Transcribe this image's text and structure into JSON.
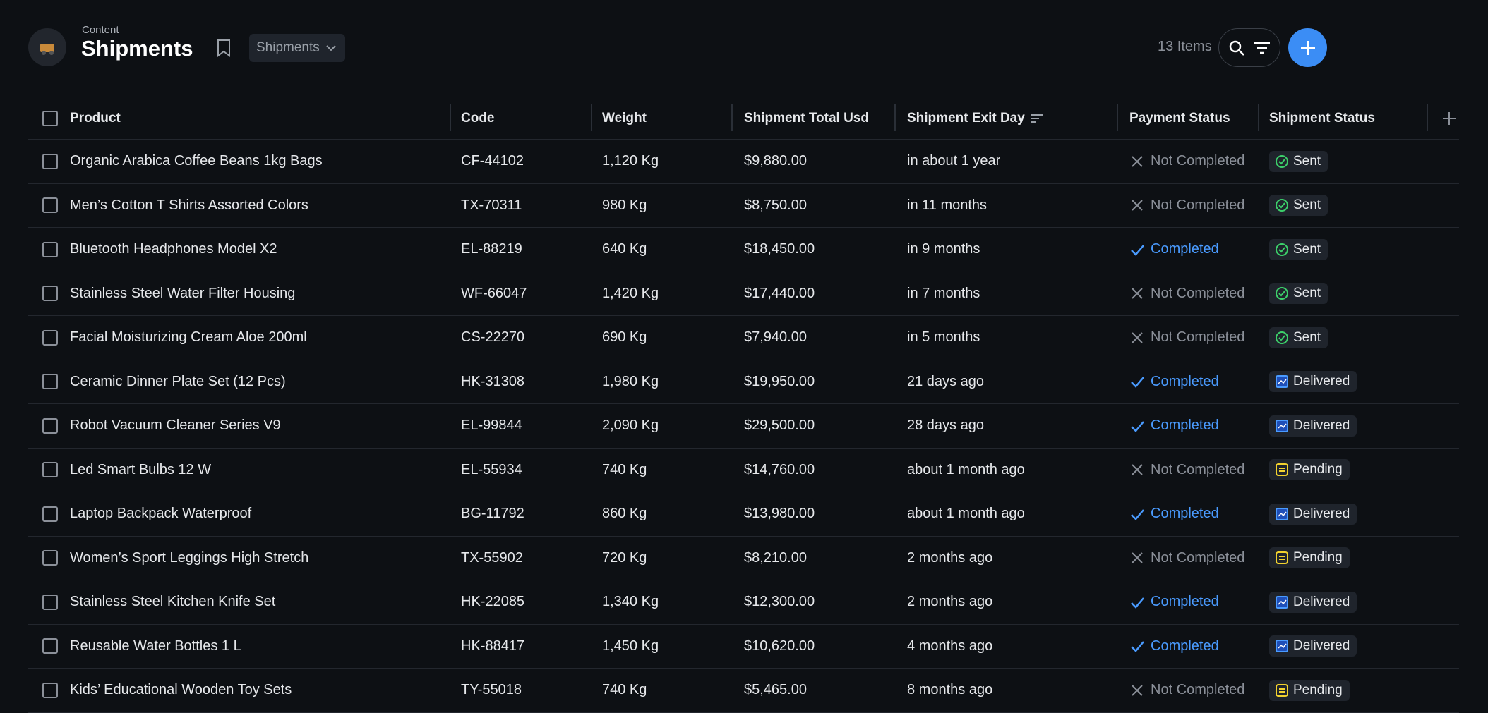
{
  "header": {
    "section": "Content",
    "title": "Shipments",
    "view": "Shipments",
    "item_count": "13 Items"
  },
  "table": {
    "columns": [
      "Product",
      "Code",
      "Weight",
      "Shipment Total Usd",
      "Shipment Exit Day",
      "Payment Status",
      "Shipment Status"
    ],
    "rows": [
      [
        "Organic Arabica Coffee Beans 1kg Bags",
        "CF-44102",
        "1,120 Kg",
        "$9,880.00",
        "in about 1 year",
        "Not Completed",
        "Sent"
      ],
      [
        "Men’s Cotton T Shirts Assorted Colors",
        "TX-70311",
        "980 Kg",
        "$8,750.00",
        "in 11 months",
        "Not Completed",
        "Sent"
      ],
      [
        "Bluetooth Headphones Model X2",
        "EL-88219",
        "640 Kg",
        "$18,450.00",
        "in 9 months",
        "Completed",
        "Sent"
      ],
      [
        "Stainless Steel Water Filter Housing",
        "WF-66047",
        "1,420 Kg",
        "$17,440.00",
        "in 7 months",
        "Not Completed",
        "Sent"
      ],
      [
        "Facial Moisturizing Cream Aloe 200ml",
        "CS-22270",
        "690 Kg",
        "$7,940.00",
        "in 5 months",
        "Not Completed",
        "Sent"
      ],
      [
        "Ceramic Dinner Plate Set (12 Pcs)",
        "HK-31308",
        "1,980 Kg",
        "$19,950.00",
        "21 days ago",
        "Completed",
        "Delivered"
      ],
      [
        "Robot Vacuum Cleaner Series V9",
        "EL-99844",
        "2,090 Kg",
        "$29,500.00",
        "28 days ago",
        "Completed",
        "Delivered"
      ],
      [
        "Led Smart Bulbs 12 W",
        "EL-55934",
        "740 Kg",
        "$14,760.00",
        "about 1 month ago",
        "Not Completed",
        "Pending"
      ],
      [
        "Laptop Backpack Waterproof",
        "BG-11792",
        "860 Kg",
        "$13,980.00",
        "about 1 month ago",
        "Completed",
        "Delivered"
      ],
      [
        "Women’s Sport Leggings High Stretch",
        "TX-55902",
        "720 Kg",
        "$8,210.00",
        "2 months ago",
        "Not Completed",
        "Pending"
      ],
      [
        "Stainless Steel Kitchen Knife Set",
        "HK-22085",
        "1,340 Kg",
        "$12,300.00",
        "2 months ago",
        "Completed",
        "Delivered"
      ],
      [
        "Reusable Water Bottles 1 L",
        "HK-88417",
        "1,450 Kg",
        "$10,620.00",
        "4 months ago",
        "Completed",
        "Delivered"
      ],
      [
        "Kids’ Educational Wooden Toy Sets",
        "TY-55018",
        "740 Kg",
        "$5,465.00",
        "8 months ago",
        "Not Completed",
        "Pending"
      ]
    ]
  }
}
